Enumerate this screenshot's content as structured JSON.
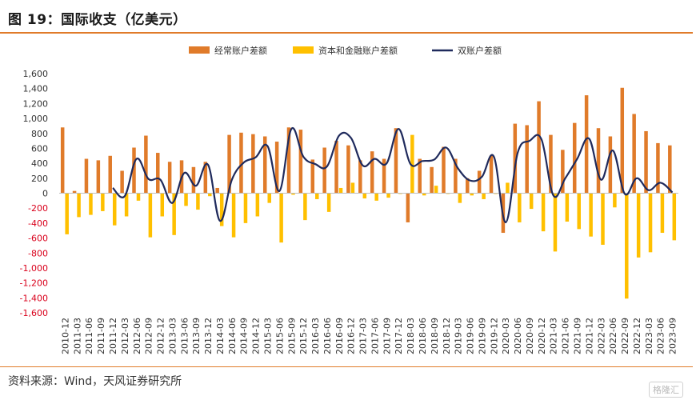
{
  "header": {
    "title": "图 19：国际收支（亿美元）"
  },
  "footer": {
    "source": "资料来源：Wind，天风证券研究所"
  },
  "watermark": {
    "text": "格隆汇"
  },
  "colors": {
    "accent": "#e07b2a",
    "current_account": "#e07b2a",
    "capital_financial": "#ffc000",
    "line": "#1f2a5c",
    "negative_tick": "#d9001b"
  },
  "chart_data": {
    "type": "bar",
    "ylim": [
      -1600,
      1600
    ],
    "yticks": [
      1600,
      1400,
      1200,
      1000,
      800,
      600,
      400,
      200,
      0,
      -200,
      -400,
      -600,
      -800,
      -1000,
      -1200,
      -1400,
      -1600
    ],
    "ytick_labels": [
      "1,600",
      "1,400",
      "1,200",
      "1,000",
      "800",
      "600",
      "400",
      "200",
      "0",
      "-200",
      "-400",
      "-600",
      "-800",
      "-1,000",
      "-1,200",
      "-1,400",
      "-1,600"
    ],
    "categories": [
      "2010-12",
      "2011-03",
      "2011-06",
      "2011-09",
      "2011-12",
      "2012-03",
      "2012-06",
      "2012-09",
      "2012-12",
      "2013-03",
      "2013-06",
      "2013-09",
      "2013-12",
      "2014-03",
      "2014-06",
      "2014-09",
      "2014-12",
      "2015-03",
      "2015-06",
      "2015-09",
      "2015-12",
      "2016-03",
      "2016-06",
      "2016-09",
      "2016-12",
      "2017-03",
      "2017-06",
      "2017-09",
      "2017-12",
      "2018-03",
      "2018-06",
      "2018-09",
      "2018-12",
      "2019-03",
      "2019-06",
      "2019-09",
      "2019-12",
      "2020-03",
      "2020-06",
      "2020-09",
      "2020-12",
      "2021-03",
      "2021-06",
      "2021-09",
      "2021-12",
      "2022-03",
      "2022-06",
      "2022-09",
      "2022-12",
      "2023-03",
      "2023-06",
      "2023-09"
    ],
    "legend": [
      "经常账户差额",
      "资本和金融账户差额",
      "双账户差额"
    ],
    "series": [
      {
        "name": "经常账户差额",
        "kind": "bar",
        "values": [
          880,
          30,
          460,
          440,
          500,
          300,
          610,
          770,
          540,
          420,
          440,
          350,
          420,
          70,
          780,
          810,
          790,
          760,
          690,
          880,
          850,
          450,
          610,
          700,
          640,
          440,
          560,
          460,
          870,
          -390,
          460,
          350,
          620,
          460,
          200,
          300,
          500,
          -530,
          930,
          910,
          1230,
          780,
          580,
          940,
          1310,
          870,
          760,
          1410,
          1060,
          830,
          670,
          640
        ]
      },
      {
        "name": "资本和金融账户差额",
        "kind": "bar",
        "values": [
          -550,
          -320,
          -290,
          -240,
          -430,
          -310,
          -100,
          -590,
          -310,
          -560,
          -170,
          -220,
          -40,
          -440,
          -590,
          -400,
          -310,
          -130,
          -660,
          -20,
          -360,
          -80,
          -250,
          70,
          140,
          -70,
          -100,
          -60,
          -10,
          780,
          -30,
          100,
          -10,
          -130,
          -30,
          -80,
          -10,
          140,
          -390,
          -210,
          -510,
          -780,
          -380,
          -480,
          -580,
          -690,
          -190,
          -1410,
          -860,
          -790,
          -530,
          -630
        ]
      },
      {
        "name": "双账户差额",
        "kind": "line",
        "values": [
          null,
          null,
          null,
          null,
          70,
          -40,
          460,
          190,
          180,
          -130,
          270,
          100,
          380,
          -370,
          180,
          410,
          480,
          630,
          30,
          860,
          490,
          390,
          360,
          770,
          740,
          370,
          460,
          400,
          860,
          390,
          430,
          450,
          610,
          330,
          170,
          220,
          490,
          -390,
          540,
          700,
          720,
          -30,
          200,
          460,
          730,
          180,
          570,
          -10,
          200,
          40,
          140,
          10
        ]
      }
    ]
  }
}
